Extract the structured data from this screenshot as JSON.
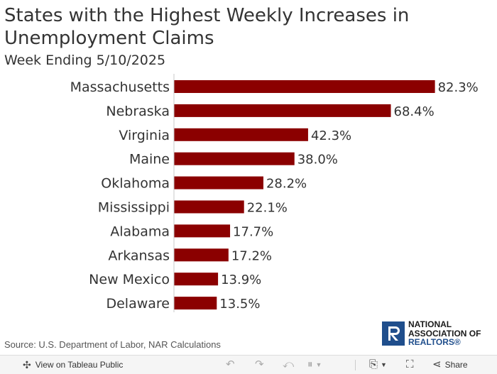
{
  "header": {
    "title": "States with the Highest Weekly Increases in Unemployment Claims",
    "subtitle": "Week Ending 5/10/2025"
  },
  "chart_data": {
    "type": "bar",
    "orientation": "horizontal",
    "categories": [
      "Massachusetts",
      "Nebraska",
      "Virginia",
      "Maine",
      "Oklahoma",
      "Mississippi",
      "Alabama",
      "Arkansas",
      "New Mexico",
      "Delaware"
    ],
    "values": [
      82.3,
      68.4,
      42.3,
      38.0,
      28.2,
      22.1,
      17.7,
      17.2,
      13.9,
      13.5
    ],
    "value_labels": [
      "82.3%",
      "68.4%",
      "42.3%",
      "38.0%",
      "28.2%",
      "22.1%",
      "17.7%",
      "17.2%",
      "13.9%",
      "13.5%"
    ],
    "xlim": [
      0,
      90
    ],
    "bar_color": "#8b0000",
    "grid": false
  },
  "footer": {
    "source": "Source: U.S. Department of Labor, NAR Calculations",
    "logo_lines": [
      "NATIONAL",
      "ASSOCIATION OF",
      "REALTORS®"
    ],
    "logo_color": "#1f4e8c"
  },
  "toolbar": {
    "view_label": "View on Tableau Public",
    "share_label": "Share"
  }
}
